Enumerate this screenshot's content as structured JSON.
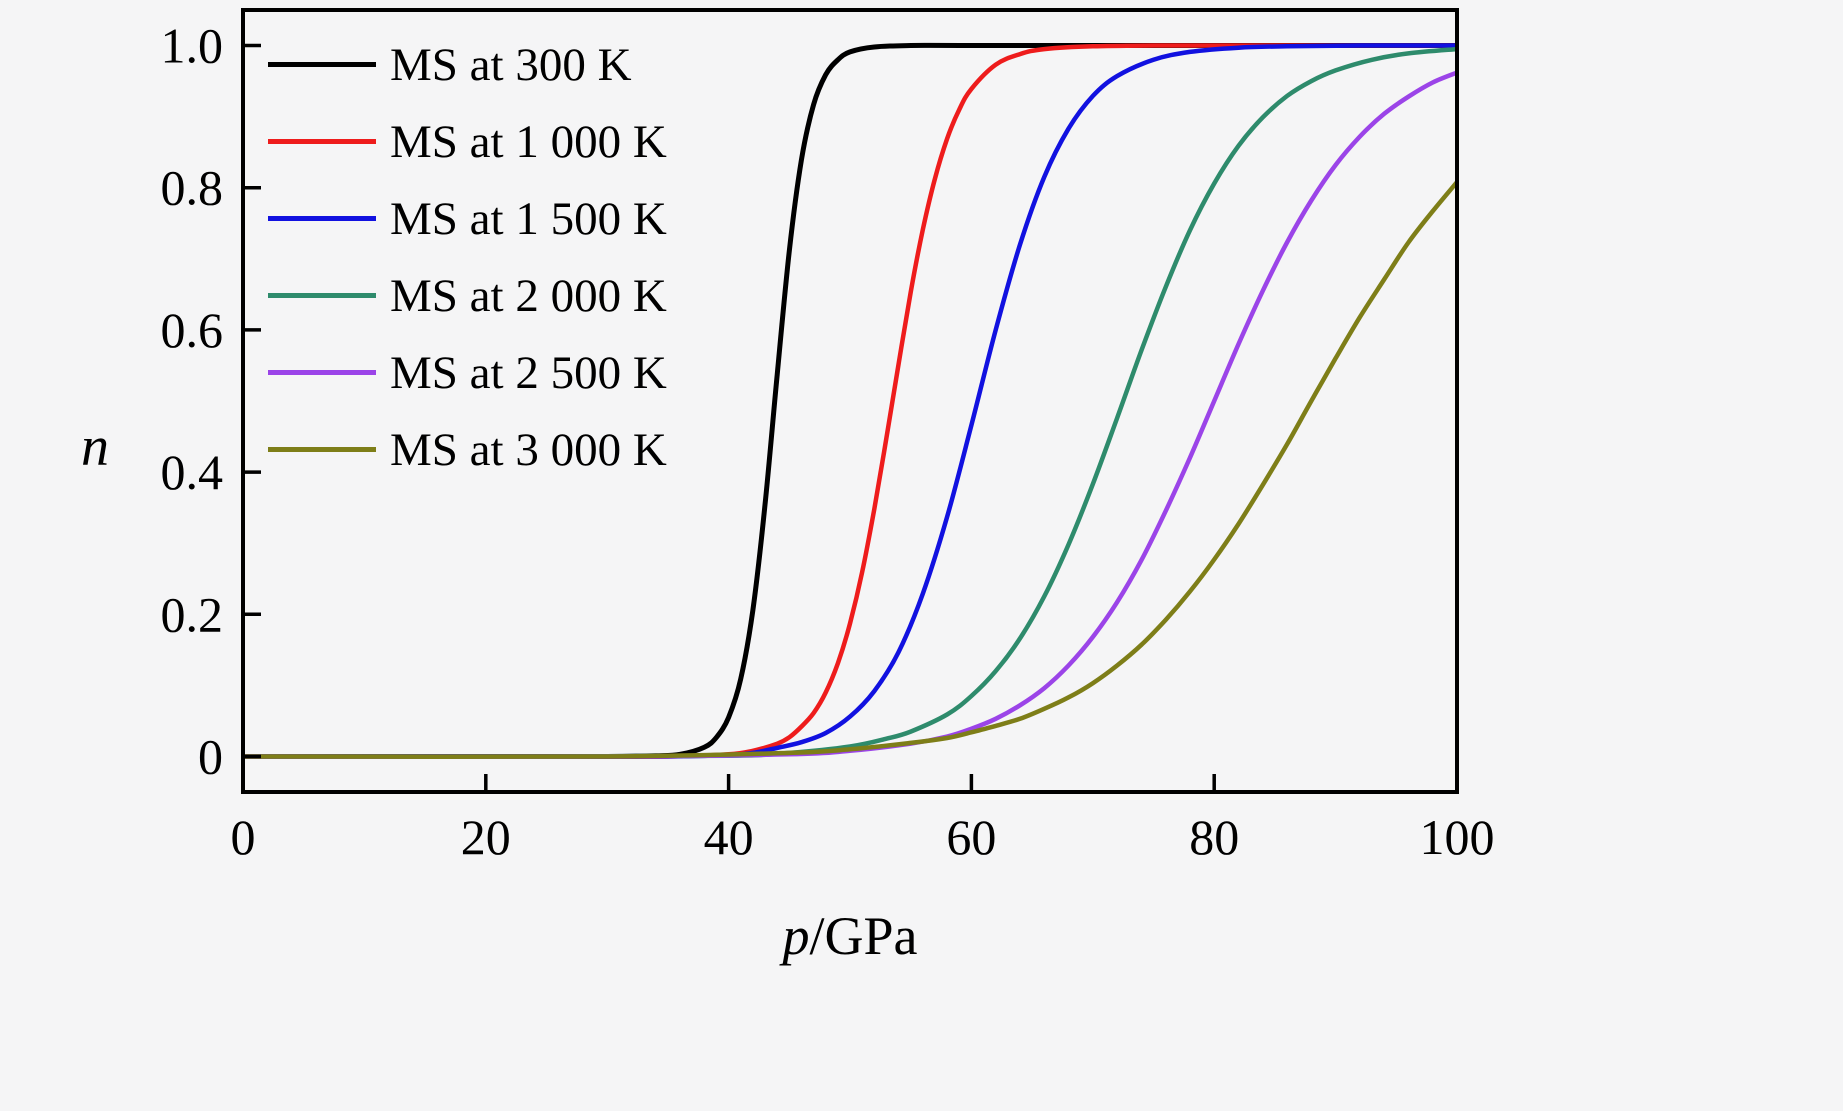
{
  "figure": {
    "background": "#f5f5f6",
    "frame_color": "#000000",
    "text_color": "#000000"
  },
  "labels": {
    "y_symbol": "n",
    "x_symbol": "p",
    "x_unit": "/GPa"
  },
  "chart_data": {
    "type": "line",
    "title": "",
    "xlabel": "p/GPa",
    "ylabel": "n",
    "xlim": [
      0,
      100
    ],
    "ylim": [
      -0.05,
      1.05
    ],
    "x_ticks": [
      0,
      20,
      40,
      60,
      80,
      100
    ],
    "x_tick_labels": [
      "0",
      "20",
      "40",
      "60",
      "80",
      "100"
    ],
    "y_ticks": [
      0,
      0.2,
      0.4,
      0.6,
      0.8,
      1.0
    ],
    "y_tick_labels": [
      "0",
      "0.2",
      "0.4",
      "0.6",
      "0.8",
      "1.0"
    ],
    "grid": false,
    "legend_position": "upper-left",
    "series": [
      {
        "name": "MS at 300 K",
        "color": "#000000",
        "stroke_width": 5,
        "points": [
          [
            0,
            0
          ],
          [
            10,
            0
          ],
          [
            20,
            0
          ],
          [
            30,
            0
          ],
          [
            34,
            0.001
          ],
          [
            36,
            0.003
          ],
          [
            38,
            0.013
          ],
          [
            39,
            0.027
          ],
          [
            40,
            0.055
          ],
          [
            41,
            0.109
          ],
          [
            42,
            0.206
          ],
          [
            43,
            0.354
          ],
          [
            44,
            0.537
          ],
          [
            45,
            0.711
          ],
          [
            46,
            0.839
          ],
          [
            47,
            0.917
          ],
          [
            48,
            0.959
          ],
          [
            49,
            0.98
          ],
          [
            50,
            0.991
          ],
          [
            52,
            0.998
          ],
          [
            55,
            1
          ],
          [
            60,
            1
          ],
          [
            80,
            1
          ],
          [
            100,
            1
          ]
        ]
      },
      {
        "name": "MS at 1 000 K",
        "color": "#ee1c1c",
        "stroke_width": 4.5,
        "points": [
          [
            0,
            0
          ],
          [
            15,
            0
          ],
          [
            30,
            0
          ],
          [
            35,
            0
          ],
          [
            40,
            0.003
          ],
          [
            42,
            0.008
          ],
          [
            44,
            0.018
          ],
          [
            45,
            0.027
          ],
          [
            46,
            0.042
          ],
          [
            47,
            0.061
          ],
          [
            48,
            0.09
          ],
          [
            49,
            0.131
          ],
          [
            50,
            0.187
          ],
          [
            51,
            0.259
          ],
          [
            52,
            0.348
          ],
          [
            53,
            0.448
          ],
          [
            54,
            0.552
          ],
          [
            55,
            0.653
          ],
          [
            56,
            0.741
          ],
          [
            57,
            0.813
          ],
          [
            58,
            0.869
          ],
          [
            59,
            0.91
          ],
          [
            60,
            0.939
          ],
          [
            62,
            0.973
          ],
          [
            64,
            0.988
          ],
          [
            66,
            0.995
          ],
          [
            70,
            0.999
          ],
          [
            75,
            1
          ],
          [
            85,
            1
          ],
          [
            100,
            1
          ]
        ]
      },
      {
        "name": "MS at 1 500 K",
        "color": "#1111e0",
        "stroke_width": 4.5,
        "points": [
          [
            0,
            0
          ],
          [
            20,
            0
          ],
          [
            35,
            0
          ],
          [
            40,
            0.002
          ],
          [
            42,
            0.005
          ],
          [
            44,
            0.012
          ],
          [
            46,
            0.02
          ],
          [
            48,
            0.033
          ],
          [
            50,
            0.056
          ],
          [
            52,
            0.092
          ],
          [
            54,
            0.147
          ],
          [
            56,
            0.229
          ],
          [
            58,
            0.337
          ],
          [
            60,
            0.466
          ],
          [
            62,
            0.6
          ],
          [
            64,
            0.72
          ],
          [
            66,
            0.815
          ],
          [
            68,
            0.883
          ],
          [
            70,
            0.929
          ],
          [
            72,
            0.957
          ],
          [
            75,
            0.98
          ],
          [
            78,
            0.991
          ],
          [
            82,
            0.997
          ],
          [
            86,
            0.999
          ],
          [
            92,
            1
          ],
          [
            100,
            1
          ]
        ]
      },
      {
        "name": "MS at 2 000 K",
        "color": "#2e8b6c",
        "stroke_width": 4.5,
        "points": [
          [
            0,
            0
          ],
          [
            25,
            0
          ],
          [
            40,
            0.001
          ],
          [
            45,
            0.005
          ],
          [
            50,
            0.014
          ],
          [
            53,
            0.025
          ],
          [
            55,
            0.035
          ],
          [
            58,
            0.059
          ],
          [
            60,
            0.085
          ],
          [
            62,
            0.12
          ],
          [
            64,
            0.166
          ],
          [
            66,
            0.225
          ],
          [
            68,
            0.298
          ],
          [
            70,
            0.383
          ],
          [
            72,
            0.476
          ],
          [
            74,
            0.571
          ],
          [
            76,
            0.66
          ],
          [
            78,
            0.74
          ],
          [
            80,
            0.806
          ],
          [
            82,
            0.859
          ],
          [
            84,
            0.899
          ],
          [
            86,
            0.929
          ],
          [
            88,
            0.95
          ],
          [
            90,
            0.965
          ],
          [
            93,
            0.98
          ],
          [
            96,
            0.989
          ],
          [
            100,
            0.995
          ]
        ]
      },
      {
        "name": "MS at 2 500 K",
        "color": "#9b44e8",
        "stroke_width": 4.5,
        "points": [
          [
            0,
            0
          ],
          [
            30,
            0
          ],
          [
            45,
            0.003
          ],
          [
            50,
            0.008
          ],
          [
            55,
            0.018
          ],
          [
            58,
            0.028
          ],
          [
            60,
            0.039
          ],
          [
            62,
            0.053
          ],
          [
            64,
            0.072
          ],
          [
            66,
            0.096
          ],
          [
            68,
            0.128
          ],
          [
            70,
            0.168
          ],
          [
            72,
            0.217
          ],
          [
            74,
            0.276
          ],
          [
            76,
            0.345
          ],
          [
            78,
            0.42
          ],
          [
            80,
            0.5
          ],
          [
            82,
            0.58
          ],
          [
            84,
            0.655
          ],
          [
            86,
            0.723
          ],
          [
            88,
            0.782
          ],
          [
            90,
            0.832
          ],
          [
            92,
            0.872
          ],
          [
            94,
            0.904
          ],
          [
            96,
            0.928
          ],
          [
            98,
            0.948
          ],
          [
            100,
            0.962
          ]
        ]
      },
      {
        "name": "MS at 3 000 K",
        "color": "#7e7e18",
        "stroke_width": 4.5,
        "points": [
          [
            0,
            0
          ],
          [
            30,
            0
          ],
          [
            45,
            0.005
          ],
          [
            50,
            0.01
          ],
          [
            55,
            0.019
          ],
          [
            58,
            0.026
          ],
          [
            60,
            0.034
          ],
          [
            62,
            0.043
          ],
          [
            64,
            0.053
          ],
          [
            66,
            0.067
          ],
          [
            68,
            0.083
          ],
          [
            70,
            0.103
          ],
          [
            72,
            0.128
          ],
          [
            74,
            0.157
          ],
          [
            76,
            0.192
          ],
          [
            78,
            0.232
          ],
          [
            80,
            0.277
          ],
          [
            82,
            0.327
          ],
          [
            84,
            0.382
          ],
          [
            86,
            0.439
          ],
          [
            88,
            0.5
          ],
          [
            90,
            0.56
          ],
          [
            92,
            0.618
          ],
          [
            94,
            0.671
          ],
          [
            96,
            0.723
          ],
          [
            98,
            0.767
          ],
          [
            100,
            0.808
          ]
        ]
      }
    ]
  }
}
